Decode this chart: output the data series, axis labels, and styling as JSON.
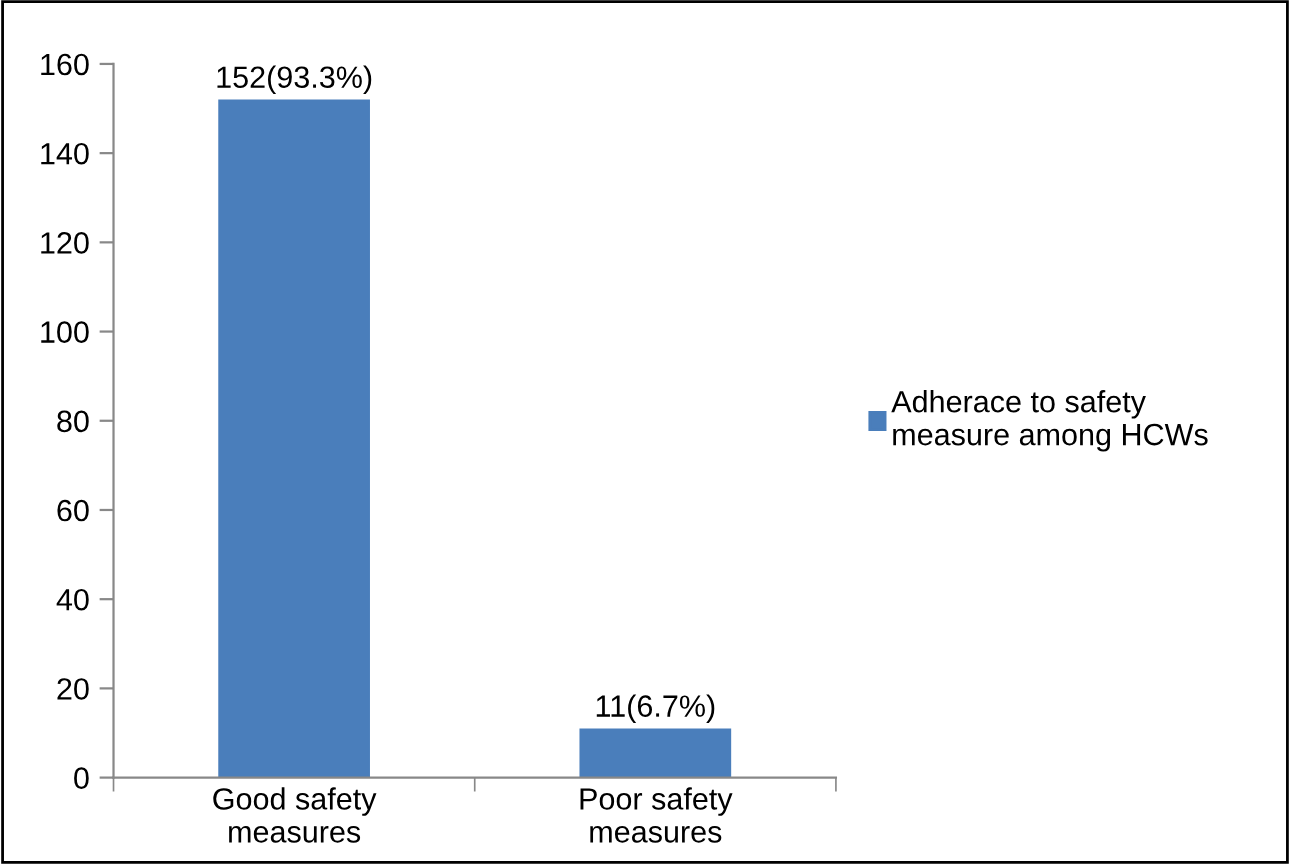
{
  "chart_data": {
    "type": "bar",
    "categories": [
      "Good safety\nmeasures",
      "Poor safety\nmeasures"
    ],
    "series": [
      {
        "name": "Adherace to safety\nmeasure among HCWs",
        "color": "#4a7ebb",
        "values": [
          152,
          11
        ],
        "value_labels": [
          "152(93.3%)",
          "11(6.7%)"
        ]
      }
    ],
    "ylim": [
      0,
      160
    ],
    "yticks": [
      0,
      20,
      40,
      60,
      80,
      100,
      120,
      140,
      160
    ],
    "grid": false,
    "legend": "right"
  }
}
